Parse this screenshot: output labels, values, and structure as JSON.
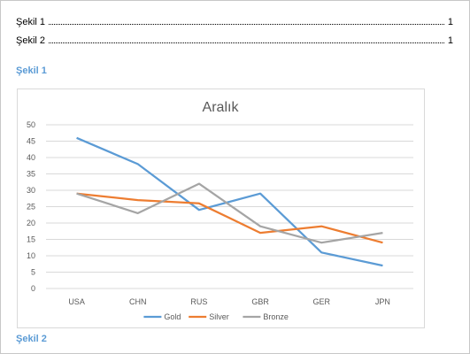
{
  "toc": [
    {
      "label": "Şekil 1",
      "page": "1"
    },
    {
      "label": "Şekil 2",
      "page": "1"
    }
  ],
  "captions": [
    "Şekil 1",
    "Şekil 2"
  ],
  "colors": {
    "caption": "#5b9bd5",
    "gold": "#5b9bd5",
    "silver": "#ed7d31",
    "bronze": "#a5a5a5",
    "grid": "#d9d9d9"
  },
  "chart_data": {
    "type": "line",
    "title": "Aralık",
    "xlabel": "",
    "ylabel": "",
    "categories": [
      "USA",
      "CHN",
      "RUS",
      "GBR",
      "GER",
      "JPN"
    ],
    "ylim": [
      0,
      50
    ],
    "yticks": [
      "0",
      "5",
      "10",
      "15",
      "20",
      "25",
      "30",
      "35",
      "40",
      "45",
      "50"
    ],
    "grid": true,
    "legend_position": "bottom",
    "series": [
      {
        "name": "Gold",
        "color": "#5b9bd5",
        "values": [
          46,
          38,
          24,
          29,
          11,
          7
        ]
      },
      {
        "name": "Silver",
        "color": "#ed7d31",
        "values": [
          29,
          27,
          26,
          17,
          19,
          14
        ]
      },
      {
        "name": "Bronze",
        "color": "#a5a5a5",
        "values": [
          29,
          23,
          32,
          19,
          14,
          17
        ]
      }
    ]
  }
}
